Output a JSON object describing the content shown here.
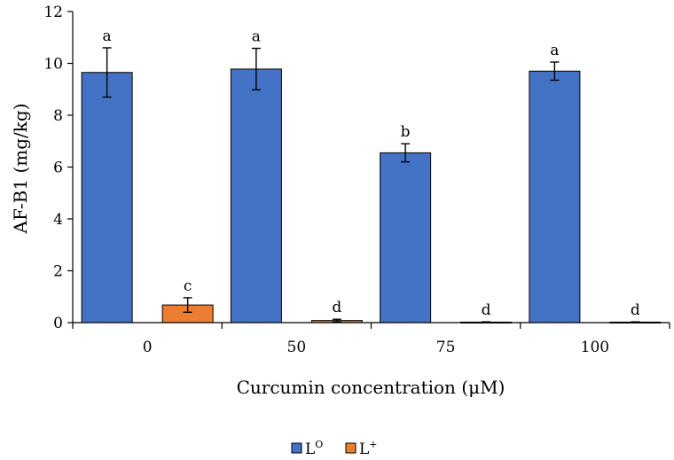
{
  "chart_data": {
    "type": "bar",
    "title": "",
    "xlabel": "Curcumin concentration (μM)",
    "ylabel": "AF-B1 (mg/kg)",
    "ylim": [
      0,
      12
    ],
    "yticks": [
      0,
      2,
      4,
      6,
      8,
      10,
      12
    ],
    "categories": [
      "0",
      "50",
      "75",
      "100"
    ],
    "legend_position": "bottom-center",
    "series": [
      {
        "name": "L",
        "superscript": "O",
        "color": "#4472C4",
        "values": [
          9.65,
          9.78,
          6.55,
          9.7
        ],
        "errors": [
          0.95,
          0.8,
          0.35,
          0.35
        ],
        "letters": [
          "a",
          "a",
          "b",
          "a"
        ]
      },
      {
        "name": "L",
        "superscript": "+",
        "color": "#ED7D31",
        "values": [
          0.68,
          0.08,
          0.02,
          0.02
        ],
        "errors": [
          0.28,
          0.05,
          0.01,
          0.01
        ],
        "letters": [
          "c",
          "d",
          "d",
          "d"
        ]
      }
    ]
  }
}
